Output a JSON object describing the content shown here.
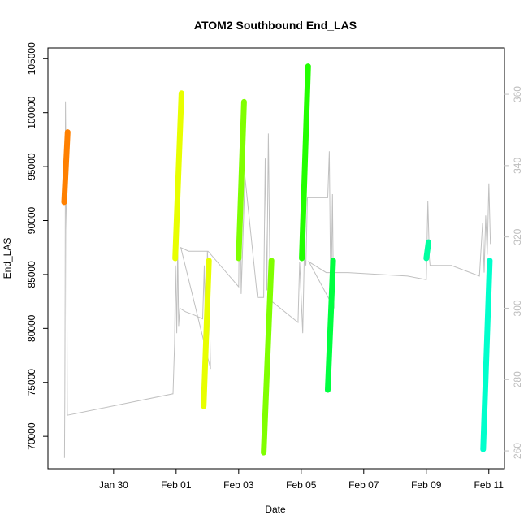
{
  "chart_data": {
    "type": "line",
    "title": "ATOM2 Southbound End_LAS",
    "xlabel": "Date",
    "ylabel": "End_LAS",
    "y_left": {
      "min": 67000,
      "max": 106000,
      "ticks": [
        70000,
        75000,
        80000,
        85000,
        90000,
        95000,
        100000,
        105000
      ]
    },
    "y_right": {
      "min": 255,
      "max": 373,
      "ticks": [
        260,
        280,
        300,
        320,
        340,
        360
      ],
      "color": "#c0c0c0"
    },
    "x_axis": {
      "min_day": 27.9,
      "max_day": 42.5,
      "ticks": [
        {
          "day": 30,
          "label": "Jan 30"
        },
        {
          "day": 32,
          "label": "Feb 01"
        },
        {
          "day": 34,
          "label": "Feb 03"
        },
        {
          "day": 36,
          "label": "Feb 05"
        },
        {
          "day": 38,
          "label": "Feb 07"
        },
        {
          "day": 40,
          "label": "Feb 09"
        },
        {
          "day": 42,
          "label": "Feb 11"
        }
      ]
    },
    "grey_series": {
      "axis": "right",
      "color": "#c0c0c0",
      "points": [
        [
          28.43,
          258
        ],
        [
          28.44,
          275
        ],
        [
          28.45,
          305
        ],
        [
          28.46,
          358
        ],
        [
          28.47,
          350
        ],
        [
          28.48,
          330
        ],
        [
          28.5,
          322
        ],
        [
          28.52,
          270
        ],
        [
          31.9,
          276
        ],
        [
          31.95,
          290
        ],
        [
          31.98,
          312
        ],
        [
          32.02,
          293
        ],
        [
          32.05,
          318
        ],
        [
          32.08,
          295
        ],
        [
          32.12,
          300
        ],
        [
          32.3,
          299
        ],
        [
          32.6,
          298
        ],
        [
          32.85,
          297
        ],
        [
          32.9,
          312
        ],
        [
          32.95,
          288
        ],
        [
          33.0,
          316
        ],
        [
          33.05,
          307
        ],
        [
          33.1,
          283
        ],
        [
          32.15,
          317
        ],
        [
          32.4,
          316
        ],
        [
          32.7,
          316
        ],
        [
          33.02,
          316
        ],
        [
          34.0,
          306
        ],
        [
          34.05,
          347
        ],
        [
          34.08,
          304
        ],
        [
          34.2,
          337
        ],
        [
          34.6,
          303
        ],
        [
          34.8,
          303
        ],
        [
          34.85,
          342
        ],
        [
          34.9,
          305
        ],
        [
          34.95,
          349
        ],
        [
          35.0,
          310
        ],
        [
          35.05,
          302
        ],
        [
          35.9,
          296
        ],
        [
          35.95,
          313
        ],
        [
          36.05,
          293
        ],
        [
          36.1,
          315
        ],
        [
          36.15,
          312
        ],
        [
          36.2,
          331
        ],
        [
          36.5,
          331
        ],
        [
          36.85,
          331
        ],
        [
          36.9,
          344
        ],
        [
          36.95,
          299
        ],
        [
          37.0,
          332
        ],
        [
          37.02,
          312
        ],
        [
          37.05,
          300
        ],
        [
          36.25,
          313
        ],
        [
          36.8,
          310
        ],
        [
          37.5,
          310
        ],
        [
          39.4,
          309
        ],
        [
          40.0,
          308
        ],
        [
          40.05,
          330
        ],
        [
          40.1,
          314
        ],
        [
          40.12,
          312
        ],
        [
          40.8,
          312
        ],
        [
          41.7,
          309
        ],
        [
          41.8,
          324
        ],
        [
          41.85,
          310
        ],
        [
          41.9,
          326
        ],
        [
          41.95,
          315
        ],
        [
          42.0,
          335
        ],
        [
          42.05,
          318
        ]
      ]
    },
    "series": [
      {
        "color": "#ff8000",
        "start": [
          28.42,
          91700
        ],
        "end": [
          28.53,
          98200
        ]
      },
      {
        "color": "#e8ff00",
        "start": [
          31.97,
          86500
        ],
        "end": [
          32.17,
          101800
        ]
      },
      {
        "color": "#e8ff00",
        "start": [
          32.88,
          72800
        ],
        "end": [
          33.05,
          86300
        ]
      },
      {
        "color": "#80ff00",
        "start": [
          34.0,
          86500
        ],
        "end": [
          34.17,
          101000
        ]
      },
      {
        "color": "#80ff00",
        "start": [
          34.8,
          68500
        ],
        "end": [
          35.05,
          86300
        ]
      },
      {
        "color": "#22ff00",
        "start": [
          36.02,
          86500
        ],
        "end": [
          36.22,
          104300
        ]
      },
      {
        "color": "#00ff40",
        "start": [
          36.85,
          74300
        ],
        "end": [
          37.02,
          86300
        ]
      },
      {
        "color": "#00ffa0",
        "start": [
          40.0,
          86500
        ],
        "end": [
          40.07,
          88000
        ]
      },
      {
        "color": "#00ffcc",
        "start": [
          41.82,
          68800
        ],
        "end": [
          42.03,
          86300
        ]
      }
    ]
  }
}
